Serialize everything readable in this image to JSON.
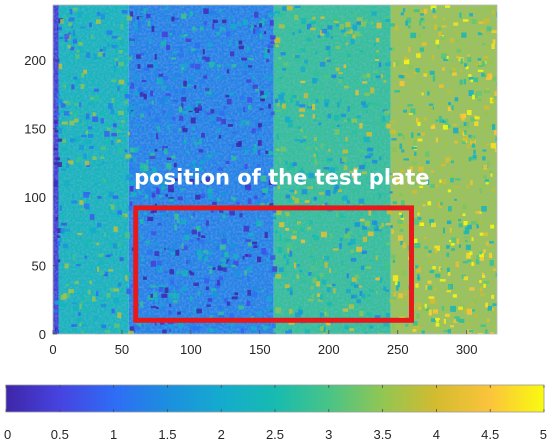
{
  "chart_data": {
    "type": "heatmap",
    "title": "",
    "xlabel": "",
    "ylabel": "",
    "xlim": [
      0,
      322
    ],
    "ylim": [
      0,
      240
    ],
    "x_ticks": [
      0,
      50,
      100,
      150,
      200,
      250,
      300
    ],
    "y_ticks": [
      0,
      50,
      100,
      150,
      200
    ],
    "x_tick_labels": [
      "0",
      "50",
      "100",
      "150",
      "200",
      "250",
      "300"
    ],
    "y_tick_labels": [
      "0",
      "50",
      "100",
      "150",
      "200"
    ],
    "colorbar": {
      "colormap": "parula",
      "range": [
        0,
        5
      ],
      "orientation": "horizontal",
      "ticks": [
        0,
        0.5,
        1,
        1.5,
        2,
        2.5,
        3,
        3.5,
        4,
        4.5,
        5
      ],
      "tick_labels": [
        "0",
        "0.5",
        "1",
        "1.5",
        "2",
        "2.5",
        "3",
        "3.5",
        "4",
        "4.5",
        "5"
      ]
    },
    "regions": [
      {
        "x_range": [
          0,
          4
        ],
        "level": 0.4
      },
      {
        "x_range": [
          4,
          55
        ],
        "level": 2.3
      },
      {
        "x_range": [
          55,
          160
        ],
        "level": 1.3
      },
      {
        "x_range": [
          160,
          245
        ],
        "level": 2.8
      },
      {
        "x_range": [
          245,
          322
        ],
        "level": 3.6
      }
    ],
    "annotation": {
      "text": "position of the test plate",
      "x": 150,
      "y": 115,
      "color": "#ffffff"
    },
    "highlight_box": {
      "x_range": [
        60,
        260
      ],
      "y_range": [
        10,
        92
      ],
      "color": "#e8191c"
    }
  }
}
